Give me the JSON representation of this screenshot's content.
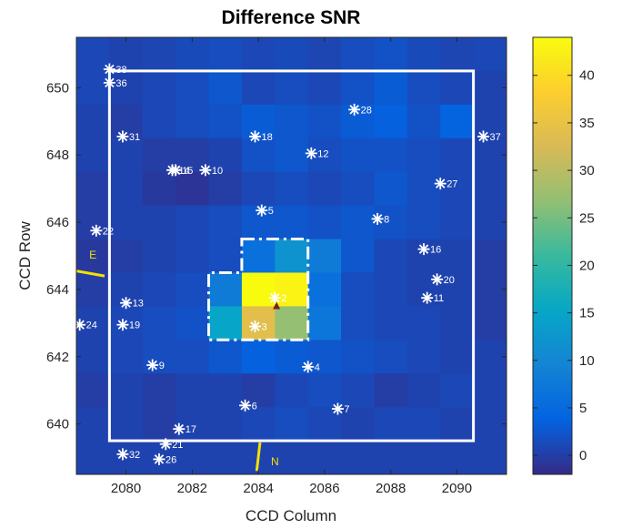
{
  "chart_data": {
    "type": "heatmap",
    "title": "Difference SNR",
    "xlabel": "CCD Column",
    "ylabel": "CCD Row",
    "xlim": [
      2078.5,
      2091.5
    ],
    "ylim": [
      638.5,
      651.5
    ],
    "xticks": [
      2080,
      2082,
      2084,
      2086,
      2088,
      2090
    ],
    "yticks": [
      640,
      642,
      644,
      646,
      648,
      650
    ],
    "colorbar": {
      "min": -2,
      "max": 44,
      "ticks": [
        0,
        5,
        10,
        15,
        20,
        25,
        30,
        35,
        40
      ]
    },
    "grid_columns": [
      2079,
      2080,
      2081,
      2082,
      2083,
      2084,
      2085,
      2086,
      2087,
      2088,
      2089,
      2090,
      2091
    ],
    "grid_rows": [
      651,
      650,
      649,
      648,
      647,
      646,
      645,
      644,
      643,
      642,
      641,
      640,
      639
    ],
    "values": [
      [
        1.0,
        0.5,
        0.8,
        1.2,
        1.5,
        1.0,
        1.2,
        0.8,
        1.5,
        2.0,
        1.2,
        0.8,
        1.0
      ],
      [
        1.0,
        0.5,
        1.0,
        1.5,
        2.5,
        1.0,
        1.5,
        1.0,
        2.0,
        3.0,
        1.5,
        1.0,
        0.5
      ],
      [
        0.5,
        0.0,
        1.0,
        1.5,
        2.0,
        3.0,
        2.5,
        2.0,
        3.0,
        3.5,
        2.0,
        4.0,
        0.5
      ],
      [
        0.5,
        0.5,
        0.0,
        0.0,
        0.5,
        2.0,
        2.5,
        1.5,
        2.0,
        2.0,
        1.5,
        1.0,
        0.5
      ],
      [
        0.0,
        0.5,
        -0.5,
        -1.0,
        0.0,
        1.0,
        1.5,
        1.0,
        1.5,
        2.5,
        1.5,
        1.0,
        0.5
      ],
      [
        0.0,
        0.5,
        0.5,
        1.0,
        1.5,
        2.5,
        2.5,
        2.0,
        2.5,
        2.0,
        1.5,
        1.0,
        0.5
      ],
      [
        -0.5,
        0.0,
        0.5,
        1.0,
        1.5,
        6.0,
        12.0,
        8.0,
        2.5,
        1.0,
        0.5,
        0.5,
        0.0
      ],
      [
        0.0,
        0.5,
        1.0,
        1.5,
        8.0,
        44.0,
        43.0,
        6.0,
        1.5,
        1.0,
        0.5,
        0.5,
        0.0
      ],
      [
        0.5,
        1.0,
        1.5,
        2.0,
        15.0,
        34.0,
        27.0,
        7.0,
        1.5,
        1.0,
        1.0,
        0.5,
        0.0
      ],
      [
        0.5,
        1.0,
        1.5,
        1.5,
        2.5,
        3.5,
        3.0,
        2.5,
        2.0,
        1.5,
        1.0,
        0.5,
        0.5
      ],
      [
        0.0,
        0.5,
        0.0,
        0.5,
        0.5,
        0.0,
        1.0,
        1.5,
        1.0,
        0.0,
        0.5,
        1.0,
        0.5
      ],
      [
        0.5,
        0.5,
        0.0,
        0.5,
        0.5,
        1.0,
        1.5,
        1.0,
        0.5,
        1.0,
        1.0,
        0.5,
        0.5
      ],
      [
        0.5,
        0.5,
        0.5,
        0.5,
        0.5,
        0.5,
        0.5,
        0.5,
        0.5,
        0.5,
        0.5,
        0.5,
        0.5
      ]
    ],
    "stars": [
      {
        "label": "38",
        "col": 2079.5,
        "row": 650.55
      },
      {
        "label": "36",
        "col": 2079.5,
        "row": 650.15
      },
      {
        "label": "28",
        "col": 2086.9,
        "row": 649.35
      },
      {
        "label": "31",
        "col": 2079.9,
        "row": 648.55
      },
      {
        "label": "18",
        "col": 2083.9,
        "row": 648.55
      },
      {
        "label": "37",
        "col": 2090.8,
        "row": 648.55
      },
      {
        "label": "12",
        "col": 2085.6,
        "row": 648.05
      },
      {
        "label": "15",
        "col": 2081.5,
        "row": 647.55
      },
      {
        "label": "14",
        "col": 2081.4,
        "row": 647.55
      },
      {
        "label": "10",
        "col": 2082.4,
        "row": 647.55
      },
      {
        "label": "27",
        "col": 2089.5,
        "row": 647.15
      },
      {
        "label": "5",
        "col": 2084.1,
        "row": 646.35
      },
      {
        "label": "8",
        "col": 2087.6,
        "row": 646.1
      },
      {
        "label": "22",
        "col": 2079.1,
        "row": 645.75
      },
      {
        "label": "16",
        "col": 2089.0,
        "row": 645.2
      },
      {
        "label": "20",
        "col": 2089.4,
        "row": 644.3
      },
      {
        "label": "11",
        "col": 2089.1,
        "row": 643.75
      },
      {
        "label": "2",
        "col": 2084.5,
        "row": 643.75
      },
      {
        "label": "13",
        "col": 2080.0,
        "row": 643.6
      },
      {
        "label": "24",
        "col": 2078.6,
        "row": 642.95
      },
      {
        "label": "19",
        "col": 2079.9,
        "row": 642.95
      },
      {
        "label": "3",
        "col": 2083.9,
        "row": 642.9
      },
      {
        "label": "9",
        "col": 2080.8,
        "row": 641.75
      },
      {
        "label": "4",
        "col": 2085.5,
        "row": 641.7
      },
      {
        "label": "6",
        "col": 2083.6,
        "row": 640.55
      },
      {
        "label": "7",
        "col": 2086.4,
        "row": 640.45
      },
      {
        "label": "17",
        "col": 2081.6,
        "row": 639.85
      },
      {
        "label": "21",
        "col": 2081.2,
        "row": 639.4
      },
      {
        "label": "32",
        "col": 2079.9,
        "row": 639.1
      },
      {
        "label": "26",
        "col": 2081.0,
        "row": 638.95
      }
    ],
    "target_marker": {
      "col": 2084.55,
      "row": 643.55
    },
    "outer_box": {
      "col_min": 2079.5,
      "col_max": 2090.5,
      "row_min": 639.5,
      "row_max": 650.5
    },
    "aperture_polygon": [
      [
        2083.5,
        645.5
      ],
      [
        2085.5,
        645.5
      ],
      [
        2085.5,
        642.5
      ],
      [
        2082.5,
        642.5
      ],
      [
        2082.5,
        644.5
      ],
      [
        2083.5,
        644.5
      ]
    ],
    "direction_markers": [
      {
        "label": "E",
        "x1": 2078.5,
        "y1": 644.55,
        "x2": 2079.35,
        "y2": 644.4,
        "label_col": 2079.0,
        "label_row": 645.0
      },
      {
        "label": "N",
        "x1": 2083.95,
        "y1": 638.6,
        "x2": 2084.05,
        "y2": 639.45,
        "label_col": 2084.5,
        "label_row": 638.85
      }
    ]
  }
}
